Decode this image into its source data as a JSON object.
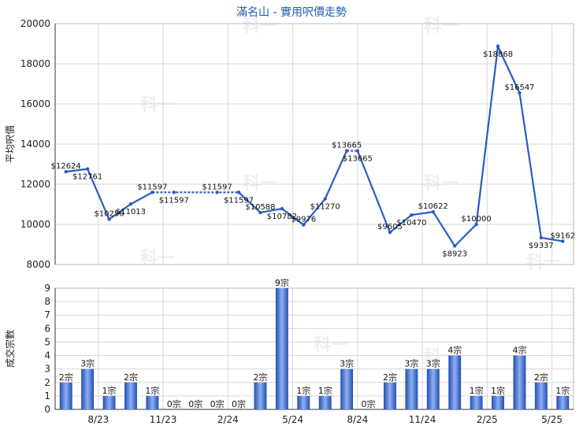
{
  "title": "滿名山 - 實用呎價走勢",
  "watermark": "科一",
  "colors": {
    "line": "#2a5bc4",
    "bar": "#2f5fc8",
    "title": "#1f5fb0",
    "grid": "#d9d9d9"
  },
  "chart_data": [
    {
      "type": "line",
      "ylabel": "平均呎價",
      "ylim": [
        8000,
        20000
      ],
      "yticks": [
        8000,
        10000,
        12000,
        14000,
        16000,
        18000,
        20000
      ],
      "grid": true,
      "series": [
        {
          "values": [
            12624,
            12761,
            10256,
            11013,
            11597,
            11597,
            11597,
            11597,
            10588,
            10782,
            9976,
            11270,
            13665,
            13665,
            9605,
            10470,
            10622,
            8923,
            10000,
            18868,
            16547,
            9337,
            9162
          ],
          "labels": [
            "$12624",
            "$12761",
            "$10256",
            "$11013",
            "$11597",
            "$11597",
            "$11597",
            "$11597",
            "$10588",
            "$10782",
            "$9976",
            "$11270",
            "$13665",
            "$13665",
            "$9605",
            "$10470",
            "$10622",
            "$8923",
            "$10000",
            "$18868",
            "$16547",
            "$9337",
            "$9162"
          ]
        }
      ]
    },
    {
      "type": "bar",
      "ylabel": "成交宗數",
      "ylim": [
        0,
        9
      ],
      "yticks": [
        0,
        1,
        2,
        3,
        4,
        5,
        6,
        7,
        8,
        9
      ],
      "grid": true,
      "x_tick_labels": [
        "8/23",
        "11/23",
        "2/24",
        "5/24",
        "8/24",
        "11/24",
        "2/25",
        "5/25"
      ],
      "series": [
        {
          "values": [
            2,
            3,
            1,
            2,
            1,
            0,
            0,
            0,
            0,
            2,
            9,
            1,
            1,
            3,
            0,
            2,
            3,
            3,
            4,
            1,
            1,
            4,
            2,
            1
          ],
          "labels": [
            "2宗",
            "3宗",
            "1宗",
            "2宗",
            "1宗",
            "0宗",
            "0宗",
            "0宗",
            "0宗",
            "2宗",
            "9宗",
            "1宗",
            "1宗",
            "3宗",
            "0宗",
            "2宗",
            "3宗",
            "3宗",
            "4宗",
            "1宗",
            "1宗",
            "4宗",
            "2宗",
            "1宗"
          ]
        }
      ]
    }
  ]
}
